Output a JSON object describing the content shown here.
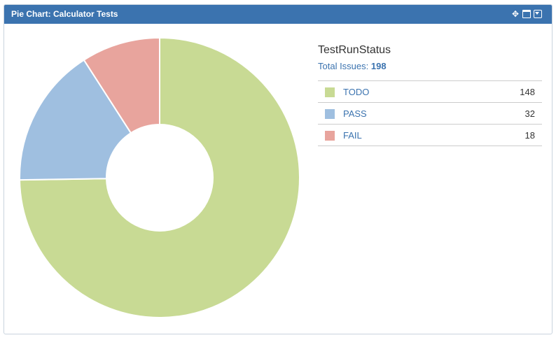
{
  "gadget": {
    "title": "Pie Chart: Calculator Tests",
    "icons": [
      "move-icon",
      "maximize-icon",
      "menu-dropdown-icon"
    ]
  },
  "legend": {
    "title": "TestRunStatus",
    "total_label": "Total Issues:",
    "total_value": "198"
  },
  "chart_data": {
    "type": "pie",
    "style": "donut",
    "title": "TestRunStatus",
    "categories": [
      "TODO",
      "PASS",
      "FAIL"
    ],
    "values": [
      148,
      32,
      18
    ],
    "colors": [
      "#c8da94",
      "#9fbfe0",
      "#e8a49d"
    ],
    "total": 198,
    "legend_position": "right"
  }
}
